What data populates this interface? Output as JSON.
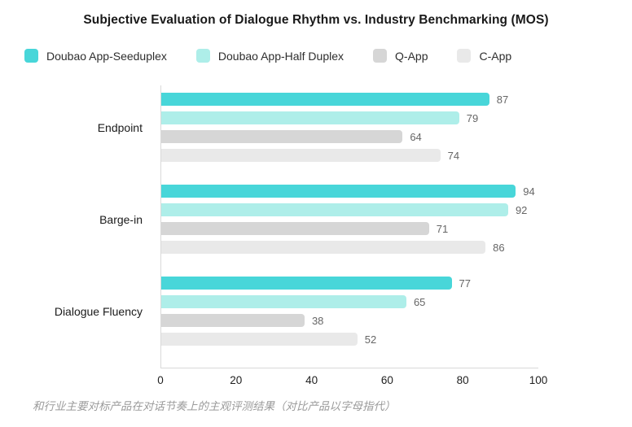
{
  "title": "Subjective Evaluation of Dialogue Rhythm vs. Industry Benchmarking (MOS)",
  "caption": "和行业主要对标产品在对话节奏上的主观评测结果（对比产品以字母指代）",
  "colors": {
    "series_1": "#48d6d9",
    "series_2": "#aeeee9",
    "series_3": "#d6d6d6",
    "series_4": "#e9e9e9",
    "axis_line": "#d9d9d9",
    "value_label": "#666666",
    "title_text": "#1a1a1a",
    "caption_text": "#9b9b9b"
  },
  "chart_data": {
    "type": "bar",
    "orientation": "horizontal",
    "title": "Subjective Evaluation of Dialogue Rhythm vs. Industry Benchmarking (MOS)",
    "categories": [
      "Endpoint",
      "Barge-in",
      "Dialogue Fluency"
    ],
    "series": [
      {
        "name": "Doubao App-Seeduplex",
        "color": "#48d6d9",
        "values": [
          87,
          94,
          77
        ]
      },
      {
        "name": "Doubao App-Half Duplex",
        "color": "#aeeee9",
        "values": [
          79,
          92,
          65
        ]
      },
      {
        "name": "Q-App",
        "color": "#d6d6d6",
        "values": [
          64,
          71,
          38
        ]
      },
      {
        "name": "C-App",
        "color": "#e9e9e9",
        "values": [
          74,
          86,
          52
        ]
      }
    ],
    "xlabel": "",
    "ylabel": "",
    "xlim": [
      0,
      100
    ],
    "xticks": [
      0,
      20,
      40,
      60,
      80,
      100
    ],
    "grid": false,
    "legend_position": "top",
    "value_labels": true
  }
}
